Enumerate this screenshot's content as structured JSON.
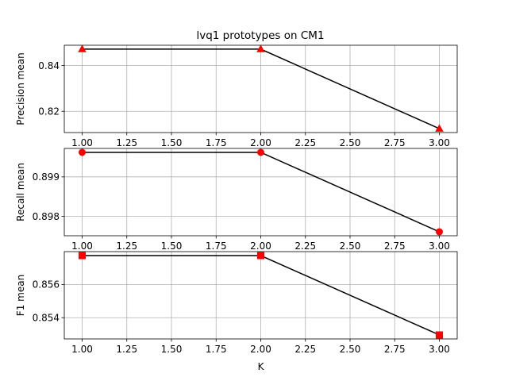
{
  "chart_data": [
    {
      "type": "line",
      "title": "lvq1 prototypes on CM1",
      "xlabel": "",
      "ylabel": "Precision mean",
      "x": [
        1.0,
        2.0,
        3.0
      ],
      "series": [
        {
          "values": [
            0.8472,
            0.8472,
            0.8124
          ],
          "color": "#000000",
          "marker": "triangle",
          "marker_color": "#ff0000"
        }
      ],
      "xlim": [
        0.9,
        3.1
      ],
      "ylim": [
        0.8107,
        0.8489
      ],
      "xticks": [
        "1.00",
        "1.25",
        "1.50",
        "1.75",
        "2.00",
        "2.25",
        "2.50",
        "2.75",
        "3.00"
      ],
      "xtick_values": [
        1.0,
        1.25,
        1.5,
        1.75,
        2.0,
        2.25,
        2.5,
        2.75,
        3.0
      ],
      "yticks": [
        "0.82",
        "0.84"
      ],
      "ytick_values": [
        0.82,
        0.84
      ],
      "grid": true
    },
    {
      "type": "line",
      "title": "",
      "xlabel": "",
      "ylabel": "Recall mean",
      "x": [
        1.0,
        2.0,
        3.0
      ],
      "series": [
        {
          "values": [
            0.89962,
            0.89962,
            0.89761
          ],
          "color": "#000000",
          "marker": "circle",
          "marker_color": "#ff0000"
        }
      ],
      "xlim": [
        0.9,
        3.1
      ],
      "ylim": [
        0.89751,
        0.89972
      ],
      "xticks": [
        "1.00",
        "1.25",
        "1.50",
        "1.75",
        "2.00",
        "2.25",
        "2.50",
        "2.75",
        "3.00"
      ],
      "xtick_values": [
        1.0,
        1.25,
        1.5,
        1.75,
        2.0,
        2.25,
        2.5,
        2.75,
        3.0
      ],
      "yticks": [
        "0.898",
        "0.899"
      ],
      "ytick_values": [
        0.898,
        0.899
      ],
      "grid": true
    },
    {
      "type": "line",
      "title": "",
      "xlabel": "K",
      "ylabel": "F1 mean",
      "x": [
        1.0,
        2.0,
        3.0
      ],
      "series": [
        {
          "values": [
            0.85774,
            0.85774,
            0.85296
          ],
          "color": "#000000",
          "marker": "square",
          "marker_color": "#ff0000"
        }
      ],
      "xlim": [
        0.9,
        3.1
      ],
      "ylim": [
        0.85272,
        0.85798
      ],
      "xticks": [
        "1.00",
        "1.25",
        "1.50",
        "1.75",
        "2.00",
        "2.25",
        "2.50",
        "2.75",
        "3.00"
      ],
      "xtick_values": [
        1.0,
        1.25,
        1.5,
        1.75,
        2.0,
        2.25,
        2.5,
        2.75,
        3.0
      ],
      "yticks": [
        "0.854",
        "0.856"
      ],
      "ytick_values": [
        0.854,
        0.856
      ],
      "grid": true
    }
  ]
}
